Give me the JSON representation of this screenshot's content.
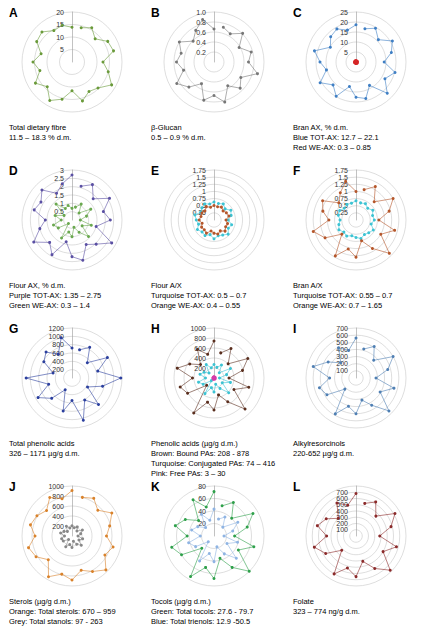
{
  "chart_data": [
    {
      "type": "polar_scatter",
      "title": "A",
      "annotations": [
        "Total dietary fibre",
        "11.5 – 18.3 % d.m."
      ],
      "grid": true,
      "tick_labels": "y",
      "x": [
        1,
        2,
        3,
        4,
        5,
        6,
        7,
        8,
        9,
        10,
        11,
        12,
        13,
        14,
        15,
        16,
        17,
        18,
        19,
        20,
        21,
        22,
        23,
        24
      ],
      "xlim": [
        0,
        24
      ],
      "ylim": [
        0,
        20
      ],
      "yticks": [
        5,
        10,
        15,
        20
      ],
      "series": [
        {
          "color": "#6a9a3a",
          "values": [
            14.2,
            15.8,
            13.1,
            16.5,
            17.2,
            12.4,
            15.0,
            18.3,
            14.7,
            13.6,
            16.1,
            11.5,
            15.4,
            17.8,
            14.0,
            16.9,
            13.3,
            15.6,
            12.8,
            16.3,
            17.0,
            14.5,
            15.2,
            13.9
          ]
        }
      ]
    },
    {
      "type": "polar_scatter",
      "title": "B",
      "annotations": [
        "β-Glucan",
        "0.5 – 0.9 % d.m."
      ],
      "grid": true,
      "tick_labels": "y",
      "x": [
        1,
        2,
        3,
        4,
        5,
        6,
        7,
        8,
        9,
        10,
        11,
        12,
        13,
        14,
        15,
        16,
        17,
        18,
        19,
        20,
        21,
        22,
        23,
        24
      ],
      "xlim": [
        0,
        24
      ],
      "ylim": [
        0,
        1
      ],
      "yticks": [
        0.2,
        0.4,
        0.6,
        0.8,
        {
          "value": 1,
          "label": "1.0"
        }
      ],
      "series": [
        {
          "color": "#777777",
          "values": [
            0.72,
            0.65,
            0.81,
            0.58,
            0.77,
            0.69,
            0.9,
            0.62,
            0.74,
            0.55,
            0.83,
            0.67,
            0.79,
            0.5,
            0.71,
            0.86,
            0.63,
            0.75,
            0.68,
            0.8,
            0.59,
            0.73,
            0.88,
            0.66
          ]
        }
      ]
    },
    {
      "type": "polar_scatter",
      "title": "C",
      "annotations": [
        "Bran AX, % d.m."
      ],
      "grid": true,
      "tick_labels": "y",
      "x": [
        1,
        2,
        3,
        4,
        5,
        6,
        7,
        8,
        9,
        10,
        11,
        12,
        13,
        14,
        15,
        16,
        17,
        18,
        19,
        20,
        21,
        22,
        23,
        24
      ],
      "xlim": [
        0,
        24
      ],
      "ylim": [
        0,
        25
      ],
      "yticks": [
        5,
        10,
        15,
        20,
        25
      ],
      "series": [
        {
          "name": "Blue TOT-AX: 12.7 – 22.1",
          "color": "#3f7fc4",
          "values": [
            17.2,
            19.5,
            15.8,
            21.0,
            18.3,
            14.1,
            20.2,
            16.7,
            22.1,
            13.5,
            18.9,
            17.6,
            12.7,
            19.8,
            16.2,
            20.7,
            15.3,
            18.0,
            21.5,
            14.8,
            17.9,
            19.1,
            16.5,
            18.6
          ]
        },
        {
          "name": "Red WE-AX: 0.3 – 0.85",
          "color": "#d62728",
          "values": [
            0.5,
            0.62,
            0.41,
            0.75,
            0.55,
            0.3,
            0.68,
            0.47,
            0.85,
            0.52,
            0.6,
            0.38,
            0.71,
            0.44,
            0.58,
            0.8,
            0.49,
            0.65,
            0.35,
            0.57,
            0.73,
            0.46,
            0.63,
            0.54
          ]
        }
      ]
    },
    {
      "type": "polar_scatter",
      "title": "D",
      "annotations": [
        "Flour AX, % d.m."
      ],
      "grid": true,
      "tick_labels": "y",
      "x": [
        1,
        2,
        3,
        4,
        5,
        6,
        7,
        8,
        9,
        10,
        11,
        12,
        13,
        14,
        15,
        16,
        17,
        18,
        19,
        20,
        21,
        22,
        23,
        24
      ],
      "xlim": [
        0,
        24
      ],
      "ylim": [
        0,
        3
      ],
      "yticks": [
        0.5,
        1,
        1.5,
        2,
        2.5,
        3
      ],
      "series": [
        {
          "name": "Purple TOT-AX: 1.35 – 2.75",
          "color": "#5a4fa3",
          "values": [
            2.1,
            2.45,
            1.8,
            2.6,
            1.95,
            2.3,
            1.5,
            2.75,
            2.05,
            1.7,
            2.5,
            2.2,
            1.35,
            2.4,
            1.9,
            2.65,
            2.0,
            1.6,
            2.35,
            2.15,
            2.55,
            1.85,
            2.25,
            2.7
          ]
        },
        {
          "name": "Green WE-AX: 0.3 – 1.4",
          "color": "#6aa84f",
          "values": [
            0.8,
            1.1,
            0.6,
            1.3,
            0.9,
            0.5,
            1.2,
            0.7,
            1.4,
            0.85,
            0.45,
            1.0,
            0.75,
            1.25,
            0.3,
            0.95,
            1.15,
            0.65,
            1.05,
            0.55,
            1.35,
            0.8,
            0.9,
            0.7
          ]
        }
      ]
    },
    {
      "type": "polar_scatter",
      "title": "E",
      "annotations": [
        "Flour A/X"
      ],
      "grid": true,
      "tick_labels": "y",
      "x": [
        1,
        2,
        3,
        4,
        5,
        6,
        7,
        8,
        9,
        10,
        11,
        12,
        13,
        14,
        15,
        16,
        17,
        18,
        19,
        20,
        21,
        22,
        23,
        24
      ],
      "xlim": [
        0,
        24
      ],
      "ylim": [
        0,
        1.75
      ],
      "yticks": [
        0.25,
        0.5,
        0.75,
        1,
        1.25,
        1.5,
        1.75
      ],
      "series": [
        {
          "name": "Turquoise TOT-AX: 0.5 – 0.7",
          "color": "#3cc3d3",
          "values": [
            0.6,
            0.65,
            0.55,
            0.68,
            0.62,
            0.5,
            0.64,
            0.58,
            0.7,
            0.61,
            0.57,
            0.66,
            0.53,
            0.63,
            0.59,
            0.67,
            0.56,
            0.62,
            0.69,
            0.54,
            0.6,
            0.65,
            0.58,
            0.63
          ]
        },
        {
          "name": "Orange WE-AX: 0.4 – 0.55",
          "color": "#b5562a",
          "values": [
            0.48,
            0.52,
            0.45,
            0.5,
            0.54,
            0.42,
            0.49,
            0.47,
            0.55,
            0.44,
            0.51,
            0.46,
            0.4,
            0.53,
            0.48,
            0.5,
            0.43,
            0.52,
            0.47,
            0.49,
            0.45,
            0.54,
            0.46,
            0.51
          ]
        }
      ]
    },
    {
      "type": "polar_scatter",
      "title": "F",
      "annotations": [
        "Bran A/X"
      ],
      "grid": true,
      "tick_labels": "y",
      "x": [
        1,
        2,
        3,
        4,
        5,
        6,
        7,
        8,
        9,
        10,
        11,
        12,
        13,
        14,
        15,
        16,
        17,
        18,
        19,
        20,
        21,
        22,
        23,
        24
      ],
      "xlim": [
        0,
        24
      ],
      "ylim": [
        0,
        1.75
      ],
      "yticks": [
        0.25,
        0.5,
        0.75,
        1,
        1.25,
        1.5,
        1.75
      ],
      "series": [
        {
          "name": "Turquoise TOT-AX: 0.55 – 0.7",
          "color": "#3cc3d3",
          "values": [
            0.62,
            0.66,
            0.58,
            0.68,
            0.6,
            0.64,
            0.55,
            0.7,
            0.63,
            0.59,
            0.67,
            0.61,
            0.57,
            0.65,
            0.6,
            0.69,
            0.62,
            0.56,
            0.64,
            0.66,
            0.58,
            0.63,
            0.61,
            0.67
          ]
        },
        {
          "name": "Orange WE-AX: 0.7 – 1.65",
          "color": "#b5562a",
          "values": [
            1.1,
            1.35,
            0.9,
            1.5,
            1.2,
            0.8,
            1.4,
            1.0,
            1.65,
            1.15,
            0.75,
            1.3,
            1.05,
            1.45,
            0.7,
            1.25,
            1.55,
            0.95,
            1.2,
            1.35,
            0.85,
            1.1,
            1.4,
            1.0
          ]
        }
      ]
    },
    {
      "type": "polar_scatter",
      "title": "G",
      "annotations": [
        "Total phenolic acids",
        "326 – 1171 µg/g d.m."
      ],
      "grid": true,
      "tick_labels": "y",
      "x": [
        1,
        2,
        3,
        4,
        5,
        6,
        7,
        8,
        9,
        10,
        11,
        12,
        13,
        14,
        15,
        16,
        17,
        18,
        19,
        20,
        21,
        22,
        23,
        24
      ],
      "xlim": [
        0,
        24
      ],
      "ylim": [
        0,
        1200
      ],
      "yticks": [
        200,
        400,
        600,
        800,
        1000,
        1200
      ],
      "series": [
        {
          "color": "#2b3f9e",
          "values": [
            700,
            850,
            520,
            980,
            640,
            1171,
            760,
            430,
            900,
            610,
            1050,
            540,
            820,
            326,
            690,
            940,
            580,
            1100,
            470,
            780,
            880,
            660,
            1000,
            720
          ]
        }
      ]
    },
    {
      "type": "polar_scatter",
      "title": "H",
      "annotations": [
        "Phenolic acids (µg/g d.m.)"
      ],
      "grid": true,
      "tick_labels": "y",
      "x": [
        1,
        2,
        3,
        4,
        5,
        6,
        7,
        8,
        9,
        10,
        11,
        12,
        13,
        14,
        15,
        16,
        17,
        18,
        19,
        20,
        21,
        22,
        23,
        24
      ],
      "xlim": [
        0,
        24
      ],
      "ylim": [
        0,
        1000
      ],
      "yticks": [
        200,
        400,
        600,
        800,
        1000
      ],
      "series": [
        {
          "name": "Brown: Bound PAs: 208 - 878",
          "color": "#5a2e1e",
          "values": [
            520,
            680,
            400,
            780,
            590,
            300,
            720,
            460,
            878,
            550,
            350,
            640,
            500,
            810,
            208,
            610,
            700,
            430,
            760,
            560,
            380,
            660,
            490,
            740
          ]
        },
        {
          "name": "Turquoise: Conjugated PAs: 74 – 416",
          "color": "#3cc3d3",
          "values": [
            220,
            300,
            150,
            380,
            260,
            110,
            340,
            190,
            416,
            240,
            130,
            280,
            200,
            360,
            74,
            250,
            320,
            170,
            290,
            230,
            140,
            310,
            210,
            270
          ]
        },
        {
          "name": "Pink: Free PAs: 3 – 30",
          "color": "#d63ca8",
          "values": [
            12,
            18,
            8,
            25,
            15,
            5,
            20,
            10,
            30,
            14,
            7,
            22,
            11,
            27,
            3,
            16,
            19,
            9,
            23,
            13,
            6,
            21,
            17,
            24
          ]
        }
      ]
    },
    {
      "type": "polar_scatter",
      "title": "I",
      "annotations": [
        "Alkylresorcinols",
        "220-652 µg/g d.m."
      ],
      "grid": true,
      "tick_labels": "y",
      "x": [
        1,
        2,
        3,
        4,
        5,
        6,
        7,
        8,
        9,
        10,
        11,
        12,
        13,
        14,
        15,
        16,
        17,
        18,
        19,
        20,
        21,
        22,
        23,
        24
      ],
      "xlim": [
        0,
        24
      ],
      "ylim": [
        0,
        700
      ],
      "yticks": [
        100,
        200,
        300,
        400,
        500,
        600,
        700
      ],
      "series": [
        {
          "color": "#4f7fb3",
          "values": [
            420,
            510,
            350,
            600,
            460,
            280,
            550,
            390,
            652,
            440,
            320,
            500,
            410,
            580,
            220,
            470,
            530,
            370,
            620,
            450,
            300,
            490,
            400,
            560
          ]
        }
      ]
    },
    {
      "type": "polar_scatter",
      "title": "J",
      "annotations": [
        "Sterols (µg/g d.m.)"
      ],
      "grid": true,
      "tick_labels": "y",
      "x": [
        1,
        2,
        3,
        4,
        5,
        6,
        7,
        8,
        9,
        10,
        11,
        12,
        13,
        14,
        15,
        16,
        17,
        18,
        19,
        20,
        21,
        22,
        23,
        24
      ],
      "xlim": [
        0,
        24
      ],
      "ylim": [
        0,
        1000
      ],
      "yticks": [
        200,
        400,
        600,
        800,
        1000
      ],
      "series": [
        {
          "name": "Orange: Total sterols: 670 – 959",
          "color": "#d9822b",
          "values": [
            800,
            870,
            730,
            920,
            780,
            690,
            850,
            760,
            959,
            820,
            710,
            880,
            790,
            940,
            670,
            830,
            900,
            740,
            860,
            810,
            720,
            890,
            770,
            910
          ]
        },
        {
          "name": "Grey: Total stanols: 97 - 263",
          "color": "#888888",
          "values": [
            170,
            210,
            140,
            240,
            180,
            120,
            220,
            160,
            263,
            190,
            110,
            230,
            175,
            250,
            97,
            200,
            215,
            150,
            235,
            185,
            130,
            225,
            165,
            205
          ]
        }
      ]
    },
    {
      "type": "polar_scatter",
      "title": "K",
      "annotations": [
        "Tocols (µg/g d.m.)"
      ],
      "grid": true,
      "tick_labels": "y",
      "x": [
        1,
        2,
        3,
        4,
        5,
        6,
        7,
        8,
        9,
        10,
        11,
        12,
        13,
        14,
        15,
        16,
        17,
        18,
        19,
        20,
        21,
        22,
        23,
        24
      ],
      "xlim": [
        0,
        24
      ],
      "ylim": [
        0,
        80
      ],
      "yticks": [
        20,
        40,
        60,
        80
      ],
      "series": [
        {
          "name": "Green: Total tocols: 27.6 - 79.7",
          "color": "#2ea04a",
          "values": [
            50,
            62,
            40,
            72,
            55,
            33,
            66,
            45,
            79.7,
            58,
            37,
            68,
            52,
            75,
            27.6,
            60,
            70,
            43,
            64,
            53,
            35,
            67,
            48,
            71
          ]
        },
        {
          "name": "Blue: Total trienols: 12.9 -50.5",
          "color": "#8fb4e3",
          "values": [
            28,
            35,
            20,
            44,
            31,
            16,
            39,
            24,
            50.5,
            33,
            18,
            41,
            29,
            46,
            12.9,
            34,
            42,
            22,
            37,
            30,
            19,
            40,
            26,
            43
          ]
        }
      ]
    },
    {
      "type": "polar_scatter",
      "title": "L",
      "annotations": [
        "Folate",
        "323 – 774 ng/g d.m."
      ],
      "grid": true,
      "tick_labels": "y",
      "x": [
        1,
        2,
        3,
        4,
        5,
        6,
        7,
        8,
        9,
        10,
        11,
        12,
        13,
        14,
        15,
        16,
        17,
        18,
        19,
        20,
        21,
        22,
        23,
        24
      ],
      "xlim": [
        0,
        24
      ],
      "ylim": [
        0,
        800
      ],
      "yticks": [
        100,
        200,
        300,
        400,
        500,
        600,
        700,
        800
      ],
      "series": [
        {
          "color": "#8b2a2a",
          "values": [
            540,
            630,
            450,
            720,
            580,
            380,
            670,
            500,
            774,
            600,
            420,
            650,
            530,
            700,
            323,
            560,
            690,
            470,
            640,
            550,
            400,
            610,
            510,
            680
          ]
        }
      ]
    }
  ]
}
